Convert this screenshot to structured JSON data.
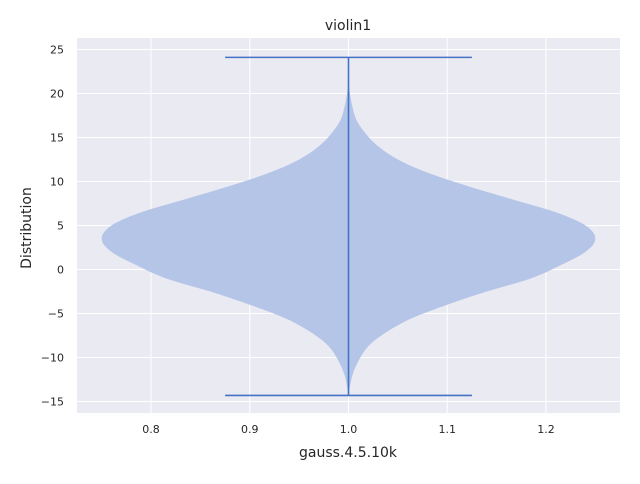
{
  "chart_data": {
    "type": "violin",
    "title": "violin1",
    "xlabel": "gauss.4.5.10k",
    "ylabel": "Distribution",
    "position": 1.0,
    "xlim": [
      0.725,
      1.275
    ],
    "ylim": [
      -16.3,
      26.3
    ],
    "xticks": [
      0.8,
      0.9,
      1.0,
      1.1,
      1.2
    ],
    "xtick_labels": [
      "0.8",
      "0.9",
      "1.0",
      "1.1",
      "1.2"
    ],
    "yticks": [
      -15,
      -10,
      -5,
      0,
      5,
      10,
      15,
      20,
      25
    ],
    "ytick_labels": [
      "−15",
      "−10",
      "−5",
      "0",
      "5",
      "10",
      "15",
      "20",
      "25"
    ],
    "min": -14.3,
    "max": 24.1,
    "cap_halfwidth": 0.125,
    "density_profile": [
      {
        "y": -14.3,
        "w": 0.0
      },
      {
        "y": -12.0,
        "w": 0.004
      },
      {
        "y": -10.0,
        "w": 0.012
      },
      {
        "y": -8.5,
        "w": 0.022
      },
      {
        "y": -7.0,
        "w": 0.04
      },
      {
        "y": -5.5,
        "w": 0.065
      },
      {
        "y": -4.0,
        "w": 0.1
      },
      {
        "y": -2.5,
        "w": 0.14
      },
      {
        "y": -1.0,
        "w": 0.185
      },
      {
        "y": 0.5,
        "w": 0.215
      },
      {
        "y": 2.0,
        "w": 0.24
      },
      {
        "y": 3.5,
        "w": 0.25
      },
      {
        "y": 5.0,
        "w": 0.24
      },
      {
        "y": 6.5,
        "w": 0.21
      },
      {
        "y": 8.0,
        "w": 0.165
      },
      {
        "y": 9.5,
        "w": 0.12
      },
      {
        "y": 11.0,
        "w": 0.08
      },
      {
        "y": 12.5,
        "w": 0.05
      },
      {
        "y": 14.0,
        "w": 0.03
      },
      {
        "y": 15.5,
        "w": 0.017
      },
      {
        "y": 17.0,
        "w": 0.008
      },
      {
        "y": 18.5,
        "w": 0.004
      },
      {
        "y": 20.0,
        "w": 0.0015
      },
      {
        "y": 21.5,
        "w": 0.0
      }
    ],
    "grid": true,
    "colors": {
      "background": "#eaeaf2",
      "grid": "#ffffff",
      "body": "#b4c5e8",
      "lines": "#4472c4"
    }
  }
}
